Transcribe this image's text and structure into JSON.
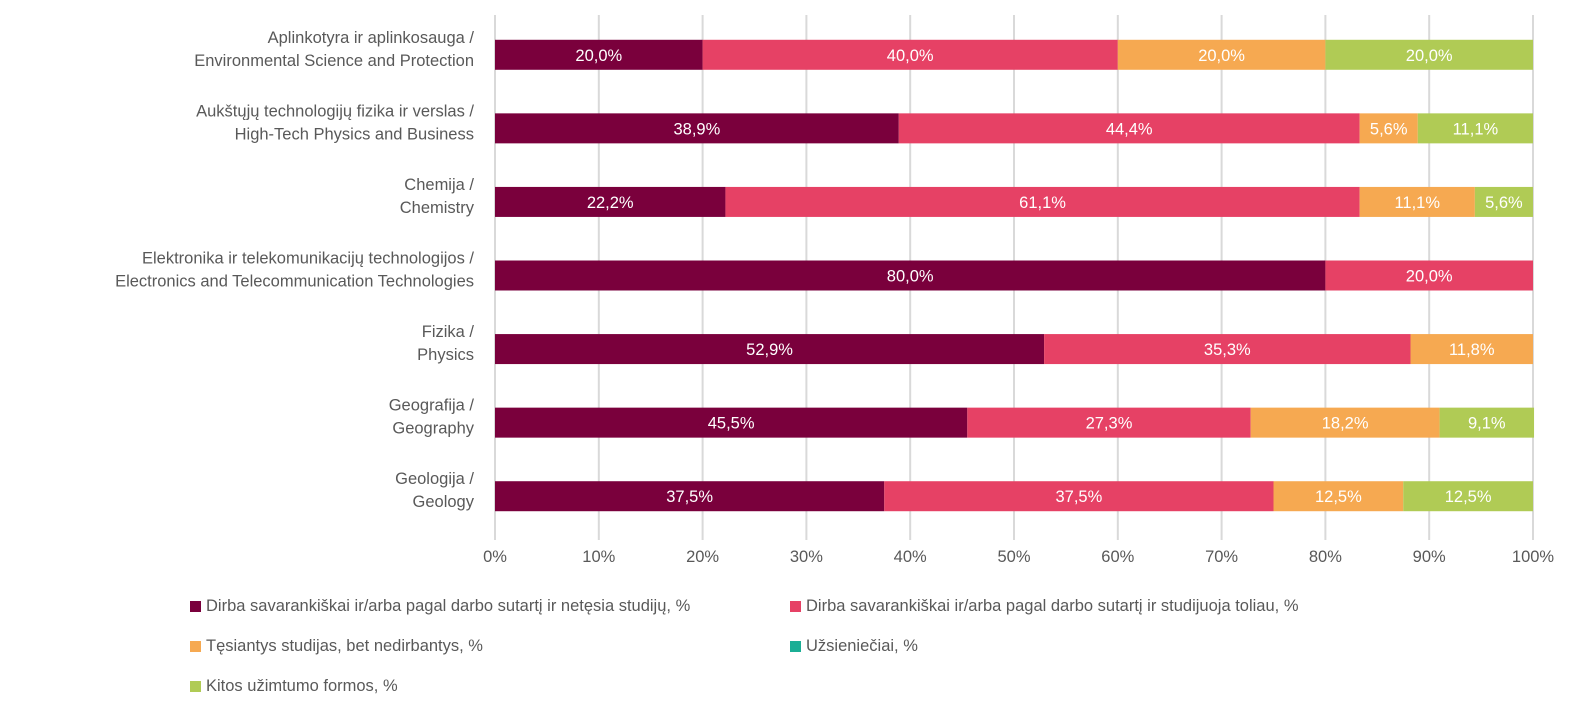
{
  "chart_data": {
    "type": "bar",
    "orientation": "horizontal",
    "stacked": "percent",
    "title": "",
    "xlabel": "",
    "ylabel": "",
    "xlim": [
      0,
      100
    ],
    "grid": true,
    "legend_position": "bottom",
    "x_ticks": [
      "0%",
      "10%",
      "20%",
      "30%",
      "40%",
      "50%",
      "60%",
      "70%",
      "80%",
      "90%",
      "100%"
    ],
    "categories": [
      [
        "Aplinkotyra ir aplinkosauga /",
        "Environmental Science and Protection"
      ],
      [
        "Aukštųjų technologijų fizika ir verslas /",
        "High-Tech Physics and Business"
      ],
      [
        "Chemija /",
        "Chemistry"
      ],
      [
        "Elektronika ir telekomunikacijų technologijos /",
        "Electronics and Telecommunication Technologies"
      ],
      [
        "Fizika /",
        "Physics"
      ],
      [
        "Geografija /",
        "Geography"
      ],
      [
        "Geologija /",
        "Geology"
      ]
    ],
    "series": [
      {
        "name": "Dirba savarankiškai ir/arba pagal darbo sutartį ir netęsia studijų, %",
        "color": "#7A003C",
        "values": [
          20.0,
          38.9,
          22.2,
          80.0,
          52.9,
          45.5,
          37.5
        ],
        "labels": [
          "20,0%",
          "38,9%",
          "22,2%",
          "80,0%",
          "52,9%",
          "45,5%",
          "37,5%"
        ]
      },
      {
        "name": "Dirba savarankiškai ir/arba pagal darbo sutartį ir studijuoja toliau, %",
        "color": "#E64165",
        "values": [
          40.0,
          44.4,
          61.1,
          20.0,
          35.3,
          27.3,
          37.5
        ],
        "labels": [
          "40,0%",
          "44,4%",
          "61,1%",
          "20,0%",
          "35,3%",
          "27,3%",
          "37,5%"
        ]
      },
      {
        "name": "Tęsiantys studijas, bet nedirbantys, %",
        "color": "#F6A951",
        "values": [
          20.0,
          5.6,
          11.1,
          0,
          11.8,
          18.2,
          12.5
        ],
        "labels": [
          "20,0%",
          "5,6%",
          "11,1%",
          "",
          "11,8%",
          "18,2%",
          "12,5%"
        ]
      },
      {
        "name": "Užsieniečiai, %",
        "color": "#1BAE95",
        "values": [
          0,
          0,
          0,
          0,
          0,
          0,
          0
        ],
        "labels": [
          "",
          "",
          "",
          "",
          "",
          "",
          ""
        ]
      },
      {
        "name": "Kitos užimtumo formos, %",
        "color": "#B0CB55",
        "values": [
          20.0,
          11.1,
          5.6,
          0,
          0,
          9.1,
          12.5
        ],
        "labels": [
          "20,0%",
          "11,1%",
          "5,6%",
          "",
          "",
          "9,1%",
          "12,5%"
        ]
      }
    ],
    "legend_order": [
      0,
      1,
      2,
      3,
      4
    ]
  },
  "colors": {
    "grid": "#D9D9D9",
    "text": "#595959",
    "bar_label": "#FFFFFF"
  }
}
